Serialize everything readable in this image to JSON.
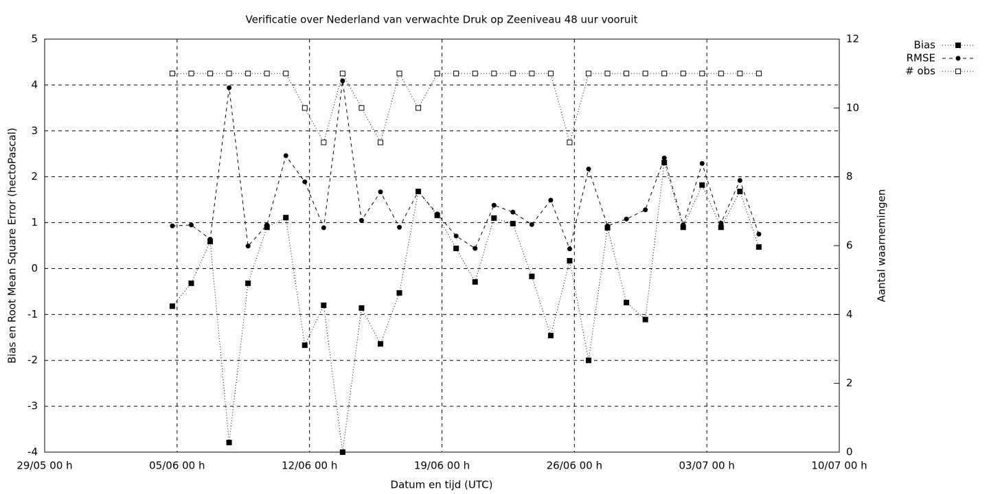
{
  "chart_data": {
    "type": "line",
    "title": "Verificatie over Nederland van verwachte Druk op Zeeniveau 48 uur vooruit",
    "x_label": "Datum en tijd (UTC)",
    "y_label": "Bias en Root Mean Square Error (hectoPascal)",
    "y2_label": "Aantal waarnemingen",
    "x": [
      6.75,
      7.75,
      8.75,
      9.75,
      10.75,
      11.75,
      12.75,
      13.75,
      14.75,
      15.75,
      16.75,
      17.75,
      18.75,
      19.75,
      20.75,
      21.75,
      22.75,
      23.75,
      24.75,
      25.75,
      26.75,
      27.75,
      28.75,
      29.75,
      30.75,
      31.75,
      32.75,
      33.75,
      34.75,
      35.75,
      36.75,
      37.75
    ],
    "xlim": [
      0,
      42
    ],
    "xticks": [
      {
        "value": 0,
        "label": "29/05 00 h"
      },
      {
        "value": 7,
        "label": "05/06 00 h"
      },
      {
        "value": 14,
        "label": "12/06 00 h"
      },
      {
        "value": 21,
        "label": "19/06 00 h"
      },
      {
        "value": 28,
        "label": "26/06 00 h"
      },
      {
        "value": 35,
        "label": "03/07 00 h"
      },
      {
        "value": 42,
        "label": "10/07 00 h"
      }
    ],
    "ylim": [
      -4,
      5
    ],
    "yticks": [
      -4,
      -3,
      -2,
      -1,
      0,
      1,
      2,
      3,
      4,
      5
    ],
    "y2lim": [
      0,
      12
    ],
    "y2ticks": [
      0,
      2,
      4,
      6,
      8,
      10,
      12
    ],
    "grid": true,
    "legend": "top-right-outside",
    "series": [
      {
        "name": "Bias",
        "color": "#000000",
        "marker": "square-filled",
        "dash": "1,3",
        "values": [
          -0.82,
          -0.32,
          0.59,
          -3.79,
          -0.32,
          0.9,
          1.11,
          -1.67,
          -0.8,
          -4.0,
          -0.86,
          -1.64,
          -0.53,
          1.68,
          1.16,
          0.44,
          -0.29,
          1.1,
          0.98,
          -0.17,
          -1.46,
          0.17,
          -2.0,
          0.89,
          -0.74,
          -1.11,
          2.31,
          0.9,
          1.82,
          0.9,
          1.68,
          0.47
        ]
      },
      {
        "name": "RMSE",
        "color": "#000000",
        "marker": "circle-filled",
        "dash": "5,5",
        "values": [
          0.93,
          0.95,
          0.64,
          3.94,
          0.49,
          0.95,
          2.46,
          1.89,
          0.89,
          4.09,
          1.05,
          1.67,
          0.9,
          1.68,
          1.19,
          0.71,
          0.44,
          1.38,
          1.23,
          0.96,
          1.49,
          0.43,
          2.17,
          0.93,
          1.08,
          1.28,
          2.41,
          0.95,
          2.29,
          0.99,
          1.92,
          0.75
        ]
      },
      {
        "name": "# obs",
        "color": "#000000",
        "marker": "square-open",
        "dash": "1,3",
        "axis": "y2",
        "values": [
          11,
          11,
          11,
          11,
          11,
          11,
          11,
          10,
          9,
          11,
          10,
          9,
          11,
          10,
          11,
          11,
          11,
          11,
          11,
          11,
          11,
          9,
          11,
          11,
          11,
          11,
          11,
          11,
          11,
          11,
          11,
          11
        ]
      }
    ]
  }
}
